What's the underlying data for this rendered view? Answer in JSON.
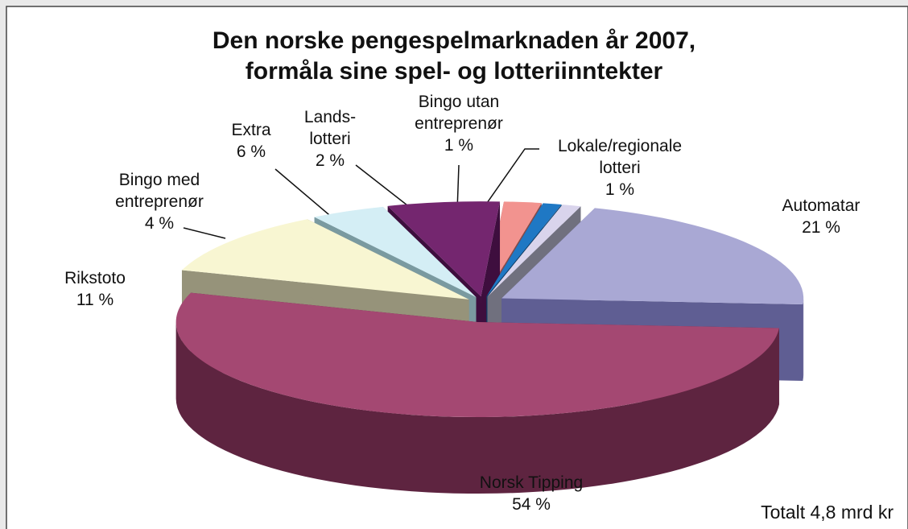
{
  "chart_data": {
    "type": "pie",
    "title": "Den norske pengespelmarknaden år 2007, formåla sine spel- og lotteriinntekter",
    "categories": [
      "Automatar",
      "Norsk Tipping",
      "Rikstoto",
      "Bingo med entreprenør",
      "Extra",
      "Lands-lotteri",
      "Bingo utan entreprenør",
      "Lokale/regionale lotteri"
    ],
    "values": [
      21,
      54,
      11,
      4,
      6,
      2,
      1,
      1
    ],
    "value_labels": [
      "21 %",
      "54 %",
      "11 %",
      "4 %",
      "6 %",
      "2 %",
      "1 %",
      "1 %"
    ],
    "colors": [
      "#a9a8d4",
      "#a44872",
      "#f8f6d2",
      "#d4eef5",
      "#74266f",
      "#f2938f",
      "#1f78c4",
      "#d9d4ec"
    ],
    "side_colors": [
      "#5f5e93",
      "#5e2440",
      "#96937a",
      "#7a9aa0",
      "#3e0e3e",
      "#8a4a48",
      "#0f3d66",
      "#70707e"
    ],
    "annotation": "Totalt 4,8 mrd kr"
  }
}
